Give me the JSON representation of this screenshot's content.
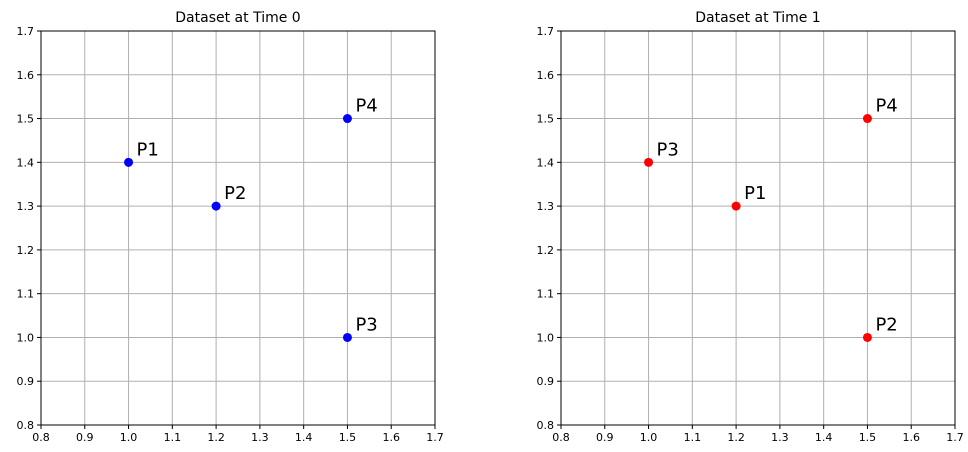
{
  "chart_data": [
    {
      "type": "scatter",
      "title": "Dataset at Time 0",
      "xlim": [
        0.8,
        1.7
      ],
      "ylim": [
        0.8,
        1.7
      ],
      "xticks": [
        "0.8",
        "0.9",
        "1.0",
        "1.1",
        "1.2",
        "1.3",
        "1.4",
        "1.5",
        "1.6",
        "1.7"
      ],
      "yticks": [
        "0.8",
        "0.9",
        "1.0",
        "1.1",
        "1.2",
        "1.3",
        "1.4",
        "1.5",
        "1.6",
        "1.7"
      ],
      "grid": true,
      "color": "#0000ff",
      "points": [
        {
          "label": "P1",
          "x": 1.0,
          "y": 1.4
        },
        {
          "label": "P2",
          "x": 1.2,
          "y": 1.3
        },
        {
          "label": "P3",
          "x": 1.5,
          "y": 1.0
        },
        {
          "label": "P4",
          "x": 1.5,
          "y": 1.5
        }
      ]
    },
    {
      "type": "scatter",
      "title": "Dataset at Time 1",
      "xlim": [
        0.8,
        1.7
      ],
      "ylim": [
        0.8,
        1.7
      ],
      "xticks": [
        "0.8",
        "0.9",
        "1.0",
        "1.1",
        "1.2",
        "1.3",
        "1.4",
        "1.5",
        "1.6",
        "1.7"
      ],
      "yticks": [
        "0.8",
        "0.9",
        "1.0",
        "1.1",
        "1.2",
        "1.3",
        "1.4",
        "1.5",
        "1.6",
        "1.7"
      ],
      "grid": true,
      "color": "#ff0000",
      "points": [
        {
          "label": "P1",
          "x": 1.2,
          "y": 1.3
        },
        {
          "label": "P2",
          "x": 1.5,
          "y": 1.0
        },
        {
          "label": "P3",
          "x": 1.0,
          "y": 1.4
        },
        {
          "label": "P4",
          "x": 1.5,
          "y": 1.5
        }
      ]
    }
  ]
}
